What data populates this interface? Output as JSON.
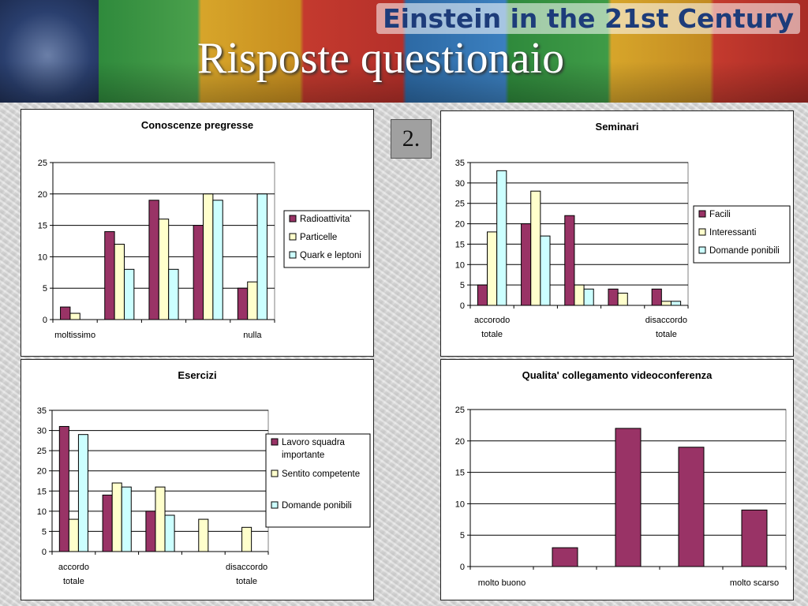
{
  "header": {
    "banner_title": "Einstein in the 21st Century",
    "slide_title": "Risposte questionaio",
    "badge": "2."
  },
  "colors": {
    "series1": "#993366",
    "series2": "#ffffcc",
    "series3": "#ccffff"
  },
  "chart_data": [
    {
      "id": "conoscenze",
      "type": "bar",
      "title": "Conoscenze pregresse",
      "categories": [
        "moltissimo",
        "",
        "",
        "",
        "nulla"
      ],
      "category_labels": [
        [
          "moltissimo"
        ],
        [
          "nulla"
        ]
      ],
      "series": [
        {
          "name": "Radioattivita'",
          "values": [
            2,
            14,
            19,
            15,
            5
          ]
        },
        {
          "name": "Particelle",
          "values": [
            1,
            12,
            16,
            20,
            6
          ]
        },
        {
          "name": "Quark e leptoni",
          "values": [
            0,
            8,
            8,
            19,
            20
          ]
        }
      ],
      "ylim": [
        0,
        25
      ],
      "yticks": [
        0,
        5,
        10,
        15,
        20,
        25
      ],
      "grid": true,
      "legend": "right"
    },
    {
      "id": "seminari",
      "type": "bar",
      "title": "Seminari",
      "categories": [
        "accorodo totale",
        "",
        "",
        "",
        "disaccordo totale"
      ],
      "category_labels": [
        [
          "accorodo",
          "totale"
        ],
        [
          "disaccordo",
          "totale"
        ]
      ],
      "series": [
        {
          "name": "Facili",
          "values": [
            5,
            20,
            22,
            4,
            4
          ]
        },
        {
          "name": "Interessanti",
          "values": [
            18,
            28,
            5,
            3,
            1
          ]
        },
        {
          "name": "Domande ponibili",
          "values": [
            33,
            17,
            4,
            0,
            1
          ]
        }
      ],
      "ylim": [
        0,
        35
      ],
      "yticks": [
        0,
        5,
        10,
        15,
        20,
        25,
        30,
        35
      ],
      "grid": true,
      "legend": "right"
    },
    {
      "id": "esercizi",
      "type": "bar",
      "title": "Esercizi",
      "categories": [
        "accordo totale",
        "",
        "",
        "",
        "disaccordo totale"
      ],
      "category_labels": [
        [
          "accordo",
          "totale"
        ],
        [
          "disaccordo",
          "totale"
        ]
      ],
      "series": [
        {
          "name": "Lavoro squadra importante",
          "legend_lines": [
            "Lavoro squadra",
            "importante"
          ],
          "values": [
            31,
            14,
            10,
            0,
            0
          ]
        },
        {
          "name": "Sentito competente",
          "legend_lines": [
            "Sentito competente"
          ],
          "values": [
            8,
            17,
            16,
            8,
            6
          ]
        },
        {
          "name": "Domande ponibili",
          "legend_lines": [
            "Domande ponibili"
          ],
          "values": [
            29,
            16,
            9,
            0,
            0
          ]
        }
      ],
      "ylim": [
        0,
        35
      ],
      "yticks": [
        0,
        5,
        10,
        15,
        20,
        25,
        30,
        35
      ],
      "grid": true,
      "legend": "right"
    },
    {
      "id": "qualita",
      "type": "bar",
      "title": "Qualita' collegamento videoconferenza",
      "categories": [
        "molto buono",
        "",
        "",
        "",
        "molto scarso"
      ],
      "category_labels": [
        [
          "molto buono"
        ],
        [
          "molto scarso"
        ]
      ],
      "series": [
        {
          "values": [
            0,
            3,
            22,
            19,
            9
          ]
        }
      ],
      "ylim": [
        0,
        25
      ],
      "yticks": [
        0,
        5,
        10,
        15,
        20,
        25
      ],
      "grid": true,
      "legend": "none"
    }
  ]
}
